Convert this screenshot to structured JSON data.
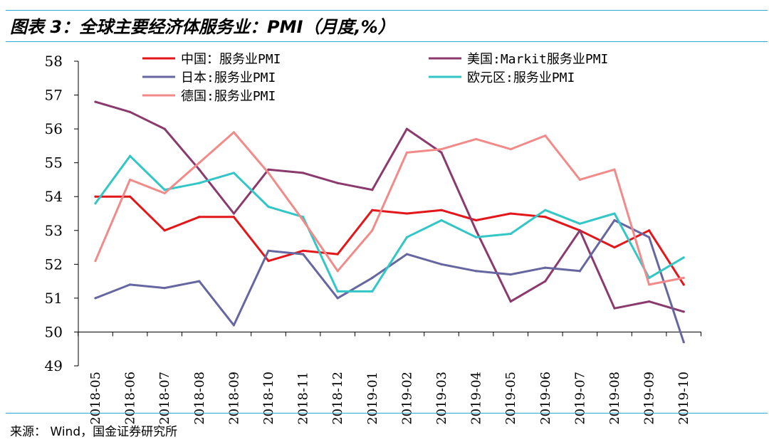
{
  "header": {
    "title": "图表 3：全球主要经济体服务业：PMI（月度,%）"
  },
  "footer": {
    "source": "来源： Wind，国金证券研究所"
  },
  "chart_data": {
    "type": "line",
    "title": "图表 3：全球主要经济体服务业：PMI（月度,%）",
    "xlabel": "",
    "ylabel": "",
    "ylim": [
      49,
      58
    ],
    "yticks": [
      49,
      50,
      51,
      52,
      53,
      54,
      55,
      56,
      57,
      58
    ],
    "grid": false,
    "legend_position": "top",
    "x": [
      "2018-05",
      "2018-06",
      "2018-07",
      "2018-08",
      "2018-09",
      "2018-10",
      "2018-11",
      "2018-12",
      "2019-01",
      "2019-02",
      "2019-03",
      "2019-04",
      "2019-05",
      "2019-06",
      "2019-07",
      "2019-08",
      "2019-09",
      "2019-10"
    ],
    "series": [
      {
        "name": "中国：服务业PMI",
        "color": "#e3161a",
        "values": [
          54.0,
          54.0,
          53.0,
          53.4,
          53.4,
          52.1,
          52.4,
          52.3,
          53.6,
          53.5,
          53.6,
          53.3,
          53.5,
          53.4,
          53.0,
          52.5,
          53.0,
          51.4
        ]
      },
      {
        "name": "美国:Markit服务业PMI",
        "color": "#8a3a6c",
        "values": [
          56.8,
          56.5,
          56.0,
          54.8,
          53.5,
          54.8,
          54.7,
          54.4,
          54.2,
          56.0,
          55.3,
          53.0,
          50.9,
          51.5,
          53.0,
          50.7,
          50.9,
          50.6
        ]
      },
      {
        "name": "日本:服务业PMI",
        "color": "#6666a0",
        "values": [
          51.0,
          51.4,
          51.3,
          51.5,
          50.2,
          52.4,
          52.3,
          51.0,
          51.6,
          52.3,
          52.0,
          51.8,
          51.7,
          51.9,
          51.8,
          53.3,
          52.8,
          49.7
        ]
      },
      {
        "name": "欧元区:服务业PMI",
        "color": "#33c6c6",
        "values": [
          53.8,
          55.2,
          54.2,
          54.4,
          54.7,
          53.7,
          53.4,
          51.2,
          51.2,
          52.8,
          53.3,
          52.8,
          52.9,
          53.6,
          53.2,
          53.5,
          51.6,
          52.2
        ]
      },
      {
        "name": "德国:服务业PMI",
        "color": "#f28a8a",
        "values": [
          52.1,
          54.5,
          54.1,
          55.0,
          55.9,
          54.7,
          53.3,
          51.8,
          53.0,
          55.3,
          55.4,
          55.7,
          55.4,
          55.8,
          54.5,
          54.8,
          51.4,
          51.6
        ]
      }
    ]
  }
}
